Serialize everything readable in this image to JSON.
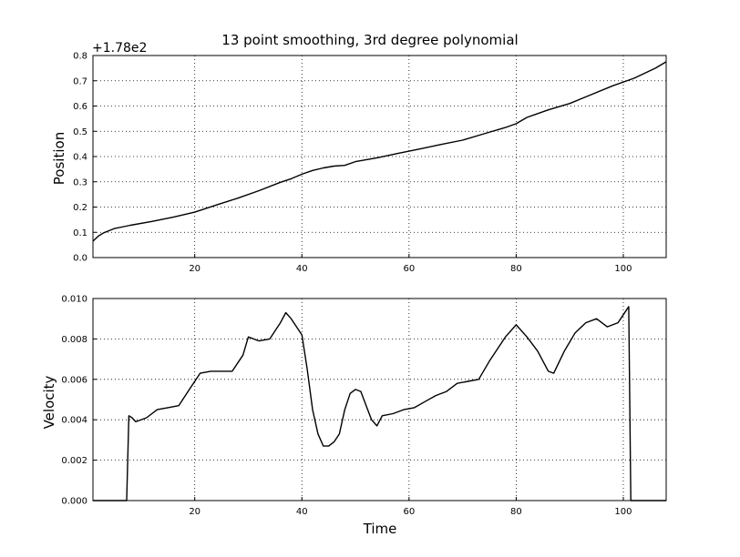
{
  "chart_data": [
    {
      "type": "line",
      "title": "13 point smoothing, 3rd degree polynomial",
      "xlabel": "",
      "ylabel": "Position",
      "y_offset_label": "+1.78e2",
      "xlim": [
        1,
        108
      ],
      "ylim": [
        0.0,
        0.8
      ],
      "xticks": [
        "20",
        "40",
        "60",
        "80",
        "100"
      ],
      "yticks": [
        "0.0",
        "0.1",
        "0.2",
        "0.3",
        "0.4",
        "0.5",
        "0.6",
        "0.7",
        "0.8"
      ],
      "grid": true,
      "x": [
        1,
        2,
        3,
        5,
        8,
        12,
        16,
        20,
        24,
        28,
        32,
        36,
        38,
        40,
        42,
        44,
        46,
        48,
        50,
        54,
        58,
        62,
        66,
        70,
        74,
        78,
        80,
        82,
        86,
        90,
        94,
        98,
        102,
        106,
        108
      ],
      "values": [
        0.065,
        0.085,
        0.098,
        0.115,
        0.128,
        0.143,
        0.16,
        0.18,
        0.208,
        0.235,
        0.265,
        0.298,
        0.312,
        0.33,
        0.345,
        0.355,
        0.362,
        0.365,
        0.38,
        0.395,
        0.413,
        0.43,
        0.448,
        0.465,
        0.49,
        0.515,
        0.53,
        0.555,
        0.585,
        0.61,
        0.645,
        0.68,
        0.71,
        0.75,
        0.775
      ]
    },
    {
      "type": "line",
      "title": "",
      "xlabel": "Time",
      "ylabel": "Velocity",
      "xlim": [
        1,
        108
      ],
      "ylim": [
        0.0,
        0.01
      ],
      "xticks": [
        "20",
        "40",
        "60",
        "80",
        "100"
      ],
      "yticks": [
        "0.000",
        "0.002",
        "0.004",
        "0.006",
        "0.008",
        "0.010"
      ],
      "grid": true,
      "x": [
        1,
        7.3,
        7.7,
        8.3,
        9,
        11,
        13,
        15,
        17,
        19,
        21,
        23,
        25,
        27,
        29,
        30,
        32,
        34,
        36,
        37,
        38,
        40,
        41,
        42,
        43,
        44,
        45,
        46,
        47,
        48,
        49,
        50,
        51,
        52,
        53,
        54,
        55,
        57,
        59,
        61,
        63,
        65,
        67,
        69,
        71,
        73,
        75,
        76,
        78,
        80,
        82,
        84,
        86,
        87,
        89,
        91,
        93,
        95,
        97,
        99,
        100,
        101,
        101.4,
        104,
        108
      ],
      "values": [
        0.0,
        0.0,
        0.0042,
        0.0041,
        0.0039,
        0.0041,
        0.0045,
        0.0046,
        0.0047,
        0.0055,
        0.0063,
        0.0064,
        0.0064,
        0.0064,
        0.0072,
        0.0081,
        0.0079,
        0.008,
        0.0088,
        0.0093,
        0.009,
        0.0082,
        0.0065,
        0.0045,
        0.0033,
        0.0027,
        0.0027,
        0.0029,
        0.0033,
        0.0045,
        0.0053,
        0.0055,
        0.0054,
        0.0047,
        0.004,
        0.0037,
        0.0042,
        0.0043,
        0.0045,
        0.0046,
        0.0049,
        0.0052,
        0.0054,
        0.0058,
        0.0059,
        0.006,
        0.0069,
        0.0073,
        0.0081,
        0.0087,
        0.0081,
        0.0074,
        0.0064,
        0.0063,
        0.0074,
        0.0083,
        0.0088,
        0.009,
        0.0086,
        0.0088,
        0.0092,
        0.0096,
        0.0,
        0.0,
        0.0
      ]
    }
  ]
}
